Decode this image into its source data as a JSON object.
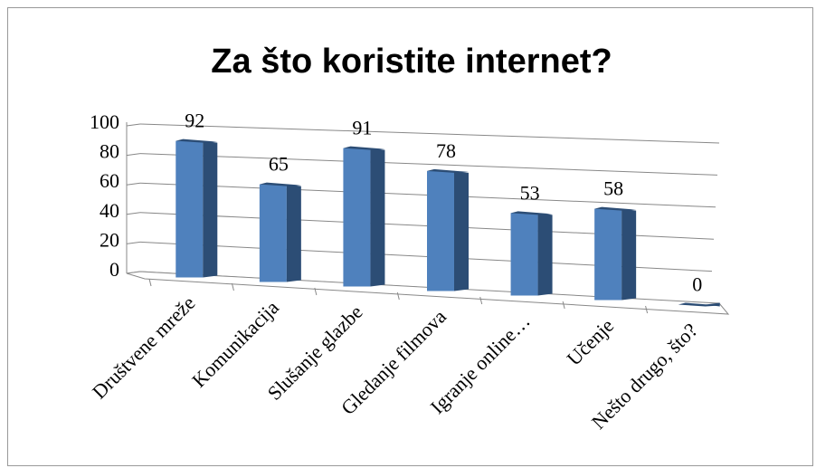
{
  "chart_data": {
    "type": "bar3d",
    "title": "Za što koristite internet?",
    "categories": [
      "Društvene mreže",
      "Komunikacija",
      "Slušanje glazbe",
      "Gledanje filmova",
      "Igranje online…",
      "Učenje",
      "Nešto drugo, što?"
    ],
    "values": [
      92,
      65,
      91,
      78,
      53,
      58,
      0
    ],
    "color": "#4f81bd",
    "side_color": "#2c4d75",
    "ylim": [
      0,
      100
    ],
    "yticks": [
      0,
      20,
      40,
      60,
      80,
      100
    ],
    "grid": true
  }
}
